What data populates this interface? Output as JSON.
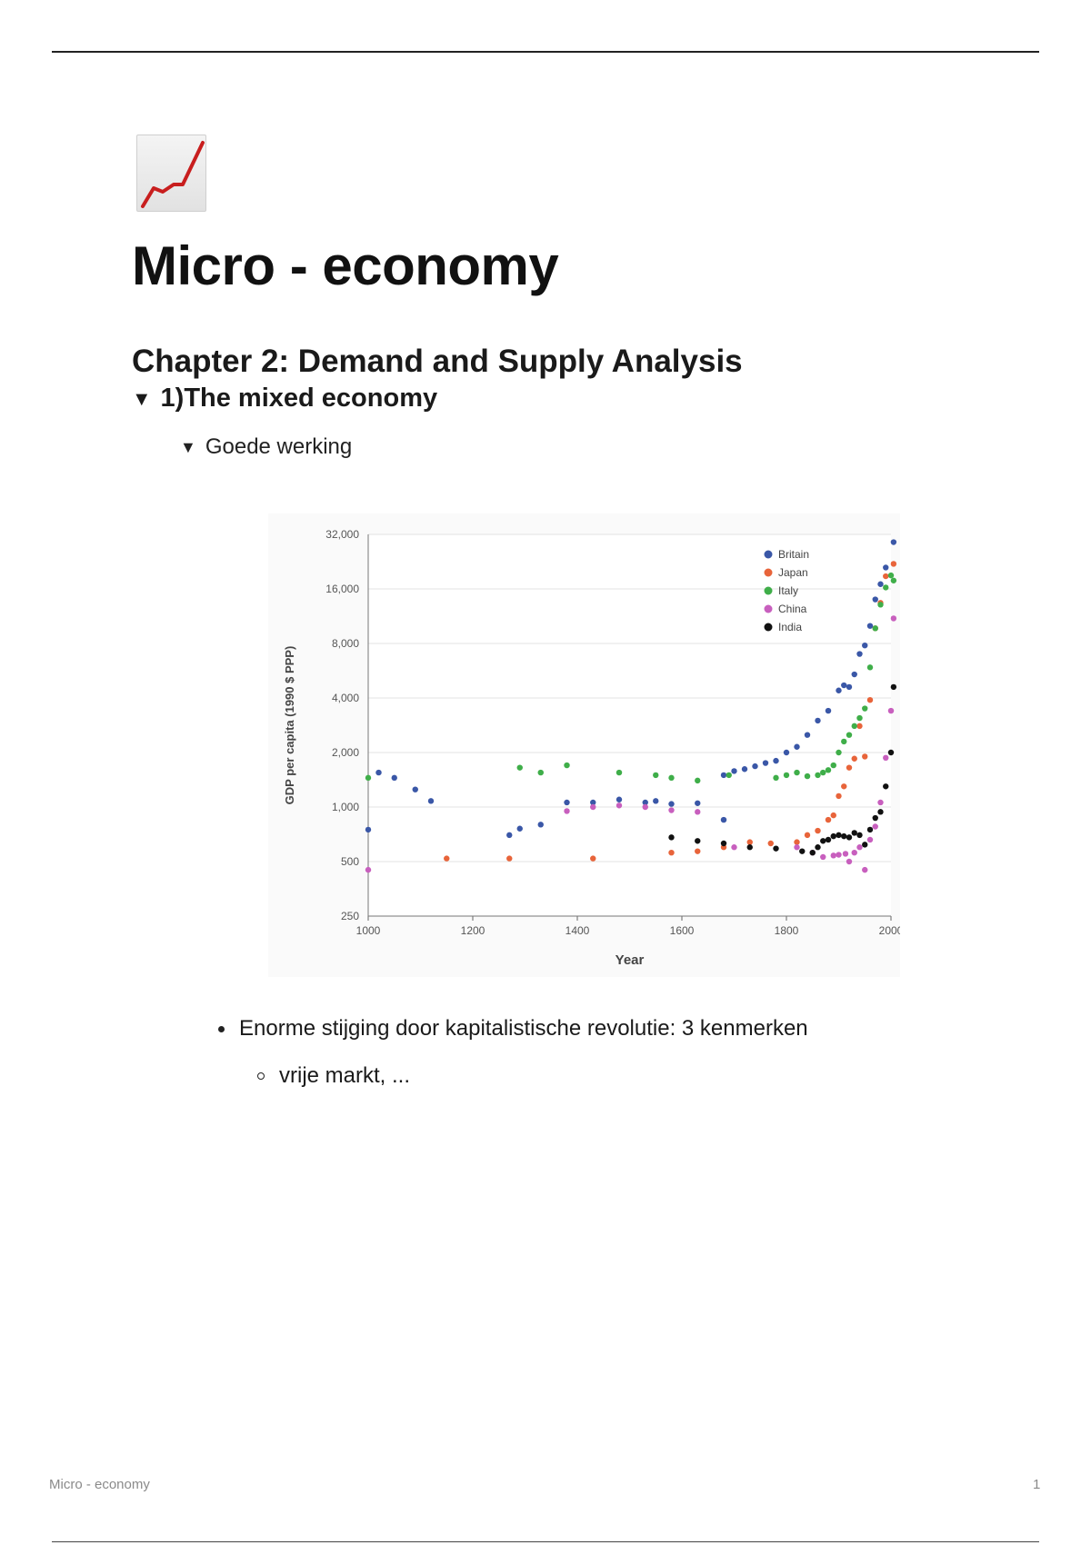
{
  "page_icon": "chart-increasing-icon",
  "title": "Micro - economy",
  "chapter": "Chapter 2: Demand and Supply Analysis",
  "section": {
    "label": "1)The mixed economy",
    "toggle_icon": "triangle-down-icon"
  },
  "subsection": {
    "label": "Goede werking",
    "toggle_icon": "triangle-down-icon"
  },
  "bullets": [
    {
      "text": "Enorme stijging door kapitalistische revolutie: 3 kenmerken",
      "children": [
        {
          "text": "vrije markt, ..."
        }
      ]
    }
  ],
  "footer": {
    "doc_name": "Micro - economy",
    "page_number": "1"
  },
  "chart_data": {
    "type": "scatter",
    "xlabel": "Year",
    "ylabel": "GDP per capita (1990 $ PPP)",
    "y_scale": "log2",
    "xlim": [
      1000,
      2000
    ],
    "ylim": [
      250,
      32000
    ],
    "x_ticks": [
      "1000",
      "1200",
      "1400",
      "1600",
      "1800",
      "2000"
    ],
    "y_ticks": [
      "250",
      "500",
      "1,000",
      "2,000",
      "4,000",
      "8,000",
      "16,000",
      "32,000"
    ],
    "grid": "horizontal",
    "legend_position": "top-right",
    "series": [
      {
        "name": "Britain",
        "color": "#3a57a7",
        "points": [
          [
            1000,
            750
          ],
          [
            1020,
            1550
          ],
          [
            1050,
            1450
          ],
          [
            1090,
            1250
          ],
          [
            1120,
            1080
          ],
          [
            1270,
            700
          ],
          [
            1290,
            760
          ],
          [
            1330,
            800
          ],
          [
            1380,
            1060
          ],
          [
            1430,
            1060
          ],
          [
            1480,
            1100
          ],
          [
            1530,
            1060
          ],
          [
            1550,
            1080
          ],
          [
            1580,
            1040
          ],
          [
            1630,
            1050
          ],
          [
            1680,
            850
          ],
          [
            1680,
            1500
          ],
          [
            1700,
            1580
          ],
          [
            1720,
            1620
          ],
          [
            1740,
            1680
          ],
          [
            1760,
            1750
          ],
          [
            1780,
            1800
          ],
          [
            1800,
            2000
          ],
          [
            1820,
            2150
          ],
          [
            1840,
            2500
          ],
          [
            1860,
            3000
          ],
          [
            1880,
            3400
          ],
          [
            1900,
            4400
          ],
          [
            1910,
            4700
          ],
          [
            1920,
            4600
          ],
          [
            1930,
            5400
          ],
          [
            1940,
            7000
          ],
          [
            1950,
            7800
          ],
          [
            1960,
            10000
          ],
          [
            1970,
            14000
          ],
          [
            1980,
            17000
          ],
          [
            1990,
            21000
          ],
          [
            2005,
            29000
          ]
        ]
      },
      {
        "name": "Japan",
        "color": "#e8643a",
        "points": [
          [
            1150,
            520
          ],
          [
            1270,
            520
          ],
          [
            1430,
            520
          ],
          [
            1580,
            560
          ],
          [
            1630,
            570
          ],
          [
            1680,
            600
          ],
          [
            1730,
            640
          ],
          [
            1770,
            630
          ],
          [
            1820,
            640
          ],
          [
            1840,
            700
          ],
          [
            1860,
            740
          ],
          [
            1880,
            850
          ],
          [
            1890,
            900
          ],
          [
            1900,
            1150
          ],
          [
            1910,
            1300
          ],
          [
            1920,
            1650
          ],
          [
            1930,
            1850
          ],
          [
            1940,
            2800
          ],
          [
            1950,
            1900
          ],
          [
            1960,
            3900
          ],
          [
            1970,
            9700
          ],
          [
            1980,
            13400
          ],
          [
            1990,
            18800
          ],
          [
            2005,
            22000
          ]
        ]
      },
      {
        "name": "Italy",
        "color": "#3fae49",
        "points": [
          [
            1000,
            1450
          ],
          [
            1290,
            1650
          ],
          [
            1330,
            1550
          ],
          [
            1380,
            1700
          ],
          [
            1480,
            1550
          ],
          [
            1550,
            1500
          ],
          [
            1580,
            1450
          ],
          [
            1630,
            1400
          ],
          [
            1690,
            1500
          ],
          [
            1780,
            1450
          ],
          [
            1800,
            1500
          ],
          [
            1820,
            1550
          ],
          [
            1840,
            1480
          ],
          [
            1860,
            1500
          ],
          [
            1870,
            1550
          ],
          [
            1880,
            1600
          ],
          [
            1890,
            1700
          ],
          [
            1900,
            2000
          ],
          [
            1910,
            2300
          ],
          [
            1920,
            2500
          ],
          [
            1930,
            2800
          ],
          [
            1940,
            3100
          ],
          [
            1950,
            3500
          ],
          [
            1960,
            5900
          ],
          [
            1970,
            9700
          ],
          [
            1980,
            13100
          ],
          [
            1990,
            16300
          ],
          [
            2000,
            19000
          ],
          [
            2005,
            17800
          ]
        ]
      },
      {
        "name": "China",
        "color": "#c85fbe",
        "points": [
          [
            1000,
            450
          ],
          [
            1380,
            950
          ],
          [
            1430,
            1000
          ],
          [
            1480,
            1020
          ],
          [
            1530,
            1000
          ],
          [
            1580,
            960
          ],
          [
            1630,
            940
          ],
          [
            1700,
            600
          ],
          [
            1820,
            600
          ],
          [
            1850,
            560
          ],
          [
            1870,
            530
          ],
          [
            1890,
            540
          ],
          [
            1900,
            545
          ],
          [
            1913,
            552
          ],
          [
            1920,
            500
          ],
          [
            1930,
            560
          ],
          [
            1940,
            600
          ],
          [
            1950,
            450
          ],
          [
            1960,
            660
          ],
          [
            1970,
            780
          ],
          [
            1980,
            1060
          ],
          [
            1990,
            1870
          ],
          [
            2000,
            3400
          ],
          [
            2005,
            11000
          ]
        ]
      },
      {
        "name": "India",
        "color": "#111111",
        "points": [
          [
            1580,
            680
          ],
          [
            1630,
            650
          ],
          [
            1680,
            630
          ],
          [
            1730,
            600
          ],
          [
            1780,
            590
          ],
          [
            1830,
            570
          ],
          [
            1850,
            560
          ],
          [
            1860,
            600
          ],
          [
            1870,
            650
          ],
          [
            1880,
            660
          ],
          [
            1890,
            690
          ],
          [
            1900,
            700
          ],
          [
            1910,
            690
          ],
          [
            1920,
            680
          ],
          [
            1930,
            720
          ],
          [
            1940,
            700
          ],
          [
            1950,
            620
          ],
          [
            1960,
            750
          ],
          [
            1970,
            870
          ],
          [
            1980,
            940
          ],
          [
            1990,
            1300
          ],
          [
            2000,
            2000
          ],
          [
            2005,
            4600
          ]
        ]
      }
    ]
  }
}
